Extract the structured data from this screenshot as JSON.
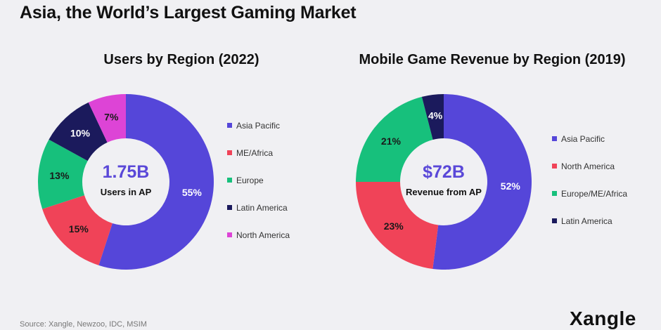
{
  "main_title": "Asia, the World’s Largest Gaming Market",
  "source": "Source: Xangle, Newzoo, IDC, MSIM",
  "brand": "Xangle",
  "colors": {
    "asia_pacific": "#5546d9",
    "red": "#f04358",
    "green": "#17c07c",
    "navy": "#1b1a5c",
    "pink": "#dd44d6"
  },
  "chart_data": [
    {
      "type": "pie",
      "donut": true,
      "title": "Users by Region (2022)",
      "center_value": "1.75B",
      "center_label": "Users in AP",
      "legend_position": "right",
      "slices": [
        {
          "label": "Asia Pacific",
          "value": 55,
          "value_label": "55%",
          "color": "#5546d9"
        },
        {
          "label": "ME/Africa",
          "value": 15,
          "value_label": "15%",
          "color": "#f04358"
        },
        {
          "label": "Europe",
          "value": 13,
          "value_label": "13%",
          "color": "#17c07c"
        },
        {
          "label": "Latin America",
          "value": 10,
          "value_label": "10%",
          "color": "#1b1a5c"
        },
        {
          "label": "North America",
          "value": 7,
          "value_label": "7%",
          "color": "#dd44d6"
        }
      ]
    },
    {
      "type": "pie",
      "donut": true,
      "title": "Mobile Game Revenue by Region (2019)",
      "center_value": "$72B",
      "center_label": "Revenue from AP",
      "legend_position": "right",
      "slices": [
        {
          "label": "Asia Pacific",
          "value": 52,
          "value_label": "52%",
          "color": "#5546d9"
        },
        {
          "label": "North America",
          "value": 23,
          "value_label": "23%",
          "color": "#f04358"
        },
        {
          "label": "Europe/ME/Africa",
          "value": 21,
          "value_label": "21%",
          "color": "#17c07c"
        },
        {
          "label": "Latin America",
          "value": 4,
          "value_label": "4%",
          "color": "#1b1a5c"
        }
      ]
    }
  ]
}
